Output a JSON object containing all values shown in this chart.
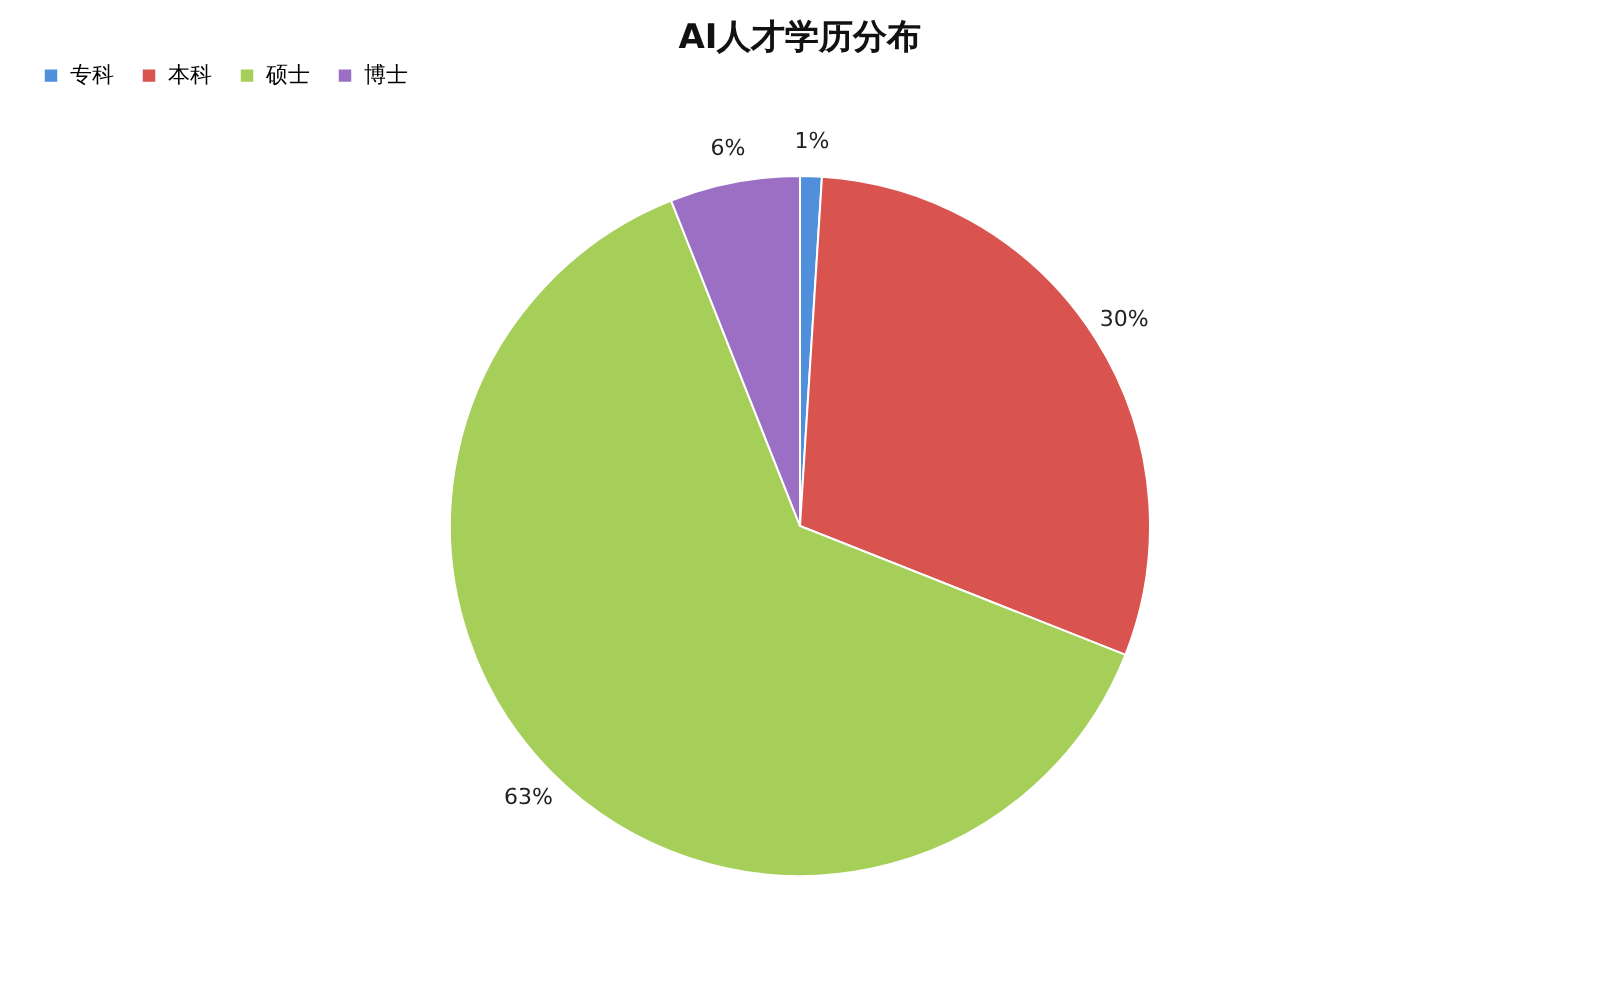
{
  "chart_data": {
    "type": "pie",
    "title": "AI人才学历分布",
    "categories": [
      "专科",
      "本科",
      "硕士",
      "博士"
    ],
    "values": [
      1,
      30,
      63,
      6
    ],
    "colors": [
      "#4f8fdb",
      "#d9534f",
      "#a6cf5a",
      "#9b6fc4"
    ],
    "value_labels": [
      "1%",
      "30%",
      "63%",
      "6%"
    ],
    "legend": "top"
  }
}
